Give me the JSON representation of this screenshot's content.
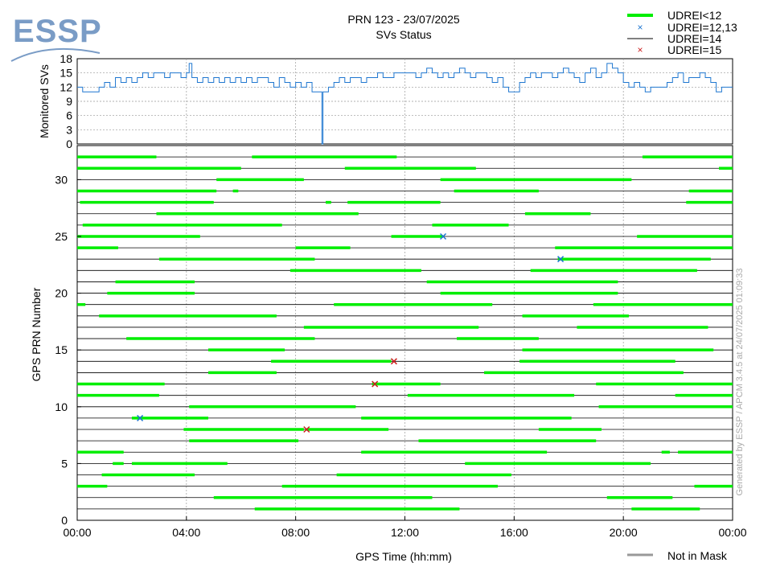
{
  "logo": {
    "text": "ESSP",
    "color": "#7a9cc6"
  },
  "title": "PRN 123 - 23/07/2025",
  "subtitle": "SVs Status",
  "legend": [
    {
      "label": "UDREI<12",
      "color": "#00ee00",
      "symbol": "thick-line"
    },
    {
      "label": "UDREI=12,13",
      "color": "#1f77d0",
      "symbol": "x"
    },
    {
      "label": "UDREI=14",
      "color": "#000000",
      "symbol": "thin-line"
    },
    {
      "label": "UDREI=15",
      "color": "#cc2020",
      "symbol": "x"
    }
  ],
  "bottom_legend": {
    "label": "Not in Mask",
    "color": "#999999"
  },
  "watermark": "Generated by ESSP / APCM 3.4.5 at 24/07/2025 01:09:33",
  "colors": {
    "green": "#00ee00",
    "blue": "#1f77d0",
    "black": "#000000",
    "red": "#cc2020",
    "top_line": "#1f77d0",
    "grid": "#999999"
  },
  "chart_data": [
    {
      "type": "line",
      "ylabel": "Monitored SVs",
      "ylim": [
        0,
        18
      ],
      "yticks": [
        0,
        3,
        6,
        9,
        12,
        15,
        18
      ],
      "xlim": [
        0,
        24
      ],
      "x_hours": [
        0,
        0.2,
        0.4,
        0.6,
        0.8,
        1.0,
        1.2,
        1.4,
        1.6,
        1.8,
        2.0,
        2.2,
        2.4,
        2.6,
        2.8,
        3.0,
        3.2,
        3.4,
        3.6,
        3.8,
        4.0,
        4.1,
        4.2,
        4.4,
        4.6,
        4.8,
        5.0,
        5.2,
        5.4,
        5.6,
        5.8,
        6.0,
        6.2,
        6.4,
        6.6,
        6.8,
        7.0,
        7.2,
        7.4,
        7.6,
        7.8,
        8.0,
        8.2,
        8.4,
        8.6,
        8.8,
        8.95,
        8.96,
        9.0,
        9.2,
        9.4,
        9.6,
        9.8,
        10.0,
        10.2,
        10.4,
        10.6,
        10.8,
        11.0,
        11.2,
        11.4,
        11.6,
        11.8,
        12.0,
        12.2,
        12.4,
        12.6,
        12.8,
        13.0,
        13.2,
        13.4,
        13.6,
        13.8,
        14.0,
        14.2,
        14.4,
        14.6,
        14.8,
        15.0,
        15.2,
        15.4,
        15.6,
        15.8,
        16.0,
        16.2,
        16.4,
        16.6,
        16.8,
        17.0,
        17.2,
        17.4,
        17.6,
        17.8,
        18.0,
        18.2,
        18.4,
        18.6,
        18.8,
        19.0,
        19.2,
        19.4,
        19.6,
        19.8,
        20.0,
        20.2,
        20.4,
        20.6,
        20.8,
        21.0,
        21.2,
        21.4,
        21.6,
        21.8,
        22.0,
        22.2,
        22.4,
        22.6,
        22.8,
        23.0,
        23.2,
        23.4,
        23.6,
        23.8,
        24.0
      ],
      "values": [
        12,
        11,
        11,
        11,
        12,
        13,
        12,
        14,
        13,
        14,
        13,
        14,
        15,
        14,
        15,
        15,
        14,
        15,
        15,
        14,
        15,
        17,
        14,
        13,
        14,
        13,
        14,
        13,
        14,
        13,
        14,
        13,
        14,
        13,
        14,
        14,
        13,
        12,
        14,
        13,
        12,
        13,
        12,
        13,
        11,
        11,
        11,
        0,
        11,
        12,
        13,
        14,
        13,
        14,
        14,
        13,
        14,
        14,
        15,
        14,
        14,
        15,
        15,
        15,
        15,
        14,
        15,
        16,
        15,
        14,
        15,
        14,
        15,
        16,
        15,
        14,
        15,
        15,
        14,
        13,
        14,
        12,
        11,
        11,
        13,
        14,
        15,
        14,
        15,
        15,
        14,
        15,
        16,
        15,
        14,
        13,
        15,
        16,
        14,
        15,
        17,
        16,
        15,
        13,
        12,
        13,
        12,
        11,
        12,
        12,
        12,
        13,
        14,
        15,
        13,
        14,
        14,
        15,
        14,
        13,
        11,
        12,
        12,
        12
      ]
    },
    {
      "type": "status-timeline",
      "title": "SVs Status",
      "xlabel": "GPS Time (hh:mm)",
      "ylabel": "GPS PRN Number",
      "xlim": [
        0,
        24
      ],
      "ylim": [
        0,
        33
      ],
      "xticks": [
        "00:00",
        "04:00",
        "08:00",
        "12:00",
        "16:00",
        "20:00",
        "00:00"
      ],
      "yticks": [
        0,
        5,
        10,
        15,
        20,
        25,
        30
      ],
      "segments": [
        {
          "prn": 1,
          "intervals": [
            [
              6.5,
              14.0
            ],
            [
              20.3,
              22.8
            ]
          ]
        },
        {
          "prn": 2,
          "intervals": [
            [
              5.0,
              13.0
            ],
            [
              19.4,
              21.8
            ]
          ]
        },
        {
          "prn": 3,
          "intervals": [
            [
              0.0,
              1.1
            ],
            [
              7.5,
              15.4
            ],
            [
              22.6,
              24.0
            ]
          ]
        },
        {
          "prn": 4,
          "intervals": [
            [
              0.9,
              4.3
            ],
            [
              9.5,
              15.9
            ]
          ]
        },
        {
          "prn": 5,
          "intervals": [
            [
              1.3,
              1.7
            ],
            [
              2.0,
              5.5
            ],
            [
              14.2,
              21.0
            ]
          ]
        },
        {
          "prn": 6,
          "intervals": [
            [
              0.0,
              1.7
            ],
            [
              10.4,
              17.2
            ],
            [
              21.4,
              21.7
            ],
            [
              22.0,
              24.0
            ]
          ]
        },
        {
          "prn": 7,
          "intervals": [
            [
              4.1,
              8.1
            ],
            [
              12.5,
              19.0
            ]
          ]
        },
        {
          "prn": 8,
          "intervals": [
            [
              3.9,
              8.3
            ],
            [
              8.4,
              11.4
            ],
            [
              16.9,
              19.2
            ]
          ]
        },
        {
          "prn": 9,
          "intervals": [
            [
              2.0,
              4.8
            ],
            [
              10.4,
              18.1
            ]
          ]
        },
        {
          "prn": 10,
          "intervals": [
            [
              4.1,
              10.2
            ],
            [
              19.1,
              24.0
            ]
          ]
        },
        {
          "prn": 11,
          "intervals": [
            [
              0.0,
              3.0
            ],
            [
              12.1,
              18.2
            ],
            [
              21.9,
              24.0
            ]
          ]
        },
        {
          "prn": 12,
          "intervals": [
            [
              0.0,
              3.2
            ],
            [
              10.8,
              13.3
            ],
            [
              19.0,
              24.0
            ]
          ]
        },
        {
          "prn": 13,
          "intervals": [
            [
              4.8,
              7.3
            ],
            [
              14.9,
              22.2
            ]
          ]
        },
        {
          "prn": 14,
          "intervals": [
            [
              7.1,
              11.5
            ],
            [
              16.2,
              21.9
            ]
          ]
        },
        {
          "prn": 15,
          "intervals": [
            [
              4.8,
              7.6
            ],
            [
              16.3,
              23.3
            ]
          ]
        },
        {
          "prn": 16,
          "intervals": [
            [
              1.8,
              8.7
            ],
            [
              13.9,
              16.9
            ]
          ]
        },
        {
          "prn": 17,
          "intervals": [
            [
              8.3,
              14.7
            ],
            [
              18.3,
              23.1
            ]
          ]
        },
        {
          "prn": 18,
          "intervals": [
            [
              0.8,
              7.3
            ],
            [
              16.3,
              20.2
            ]
          ]
        },
        {
          "prn": 19,
          "intervals": [
            [
              0.0,
              0.3
            ],
            [
              9.4,
              15.2
            ],
            [
              18.9,
              24.0
            ]
          ]
        },
        {
          "prn": 20,
          "intervals": [
            [
              1.1,
              4.3
            ],
            [
              13.3,
              19.8
            ]
          ]
        },
        {
          "prn": 21,
          "intervals": [
            [
              1.4,
              4.3
            ],
            [
              12.8,
              19.8
            ]
          ]
        },
        {
          "prn": 22,
          "intervals": [
            [
              7.8,
              12.6
            ],
            [
              16.6,
              22.7
            ]
          ]
        },
        {
          "prn": 23,
          "intervals": [
            [
              3.0,
              8.7
            ],
            [
              17.6,
              23.2
            ]
          ]
        },
        {
          "prn": 24,
          "intervals": [
            [
              0.0,
              1.5
            ],
            [
              8.0,
              10.0
            ],
            [
              17.5,
              24.0
            ]
          ]
        },
        {
          "prn": 25,
          "intervals": [
            [
              0.0,
              4.5
            ],
            [
              11.5,
              13.4
            ],
            [
              20.5,
              24.0
            ]
          ]
        },
        {
          "prn": 26,
          "intervals": [
            [
              0.2,
              7.5
            ],
            [
              13.0,
              15.8
            ]
          ]
        },
        {
          "prn": 27,
          "intervals": [
            [
              2.9,
              10.3
            ],
            [
              16.4,
              18.8
            ]
          ]
        },
        {
          "prn": 28,
          "intervals": [
            [
              0.1,
              5.0
            ],
            [
              9.1,
              9.3
            ],
            [
              9.9,
              13.3
            ],
            [
              22.3,
              24.0
            ]
          ]
        },
        {
          "prn": 29,
          "intervals": [
            [
              0.0,
              5.1
            ],
            [
              5.7,
              5.9
            ],
            [
              13.8,
              16.9
            ],
            [
              22.4,
              24.0
            ]
          ]
        },
        {
          "prn": 30,
          "intervals": [
            [
              5.1,
              8.3
            ],
            [
              13.3,
              20.3
            ]
          ]
        },
        {
          "prn": 31,
          "intervals": [
            [
              0.0,
              6.0
            ],
            [
              9.8,
              14.6
            ],
            [
              23.5,
              24.0
            ]
          ]
        },
        {
          "prn": 32,
          "intervals": [
            [
              0.0,
              2.9
            ],
            [
              6.4,
              11.7
            ],
            [
              20.7,
              24.0
            ]
          ]
        }
      ],
      "markers": [
        {
          "prn": 25,
          "x": 13.4,
          "udrei": "12,13"
        },
        {
          "prn": 23,
          "x": 17.7,
          "udrei": "12,13"
        },
        {
          "prn": 9,
          "x": 2.3,
          "udrei": "12,13"
        },
        {
          "prn": 14,
          "x": 11.6,
          "udrei": "15"
        },
        {
          "prn": 12,
          "x": 10.9,
          "udrei": "15"
        },
        {
          "prn": 8,
          "x": 8.4,
          "udrei": "15"
        }
      ]
    }
  ]
}
